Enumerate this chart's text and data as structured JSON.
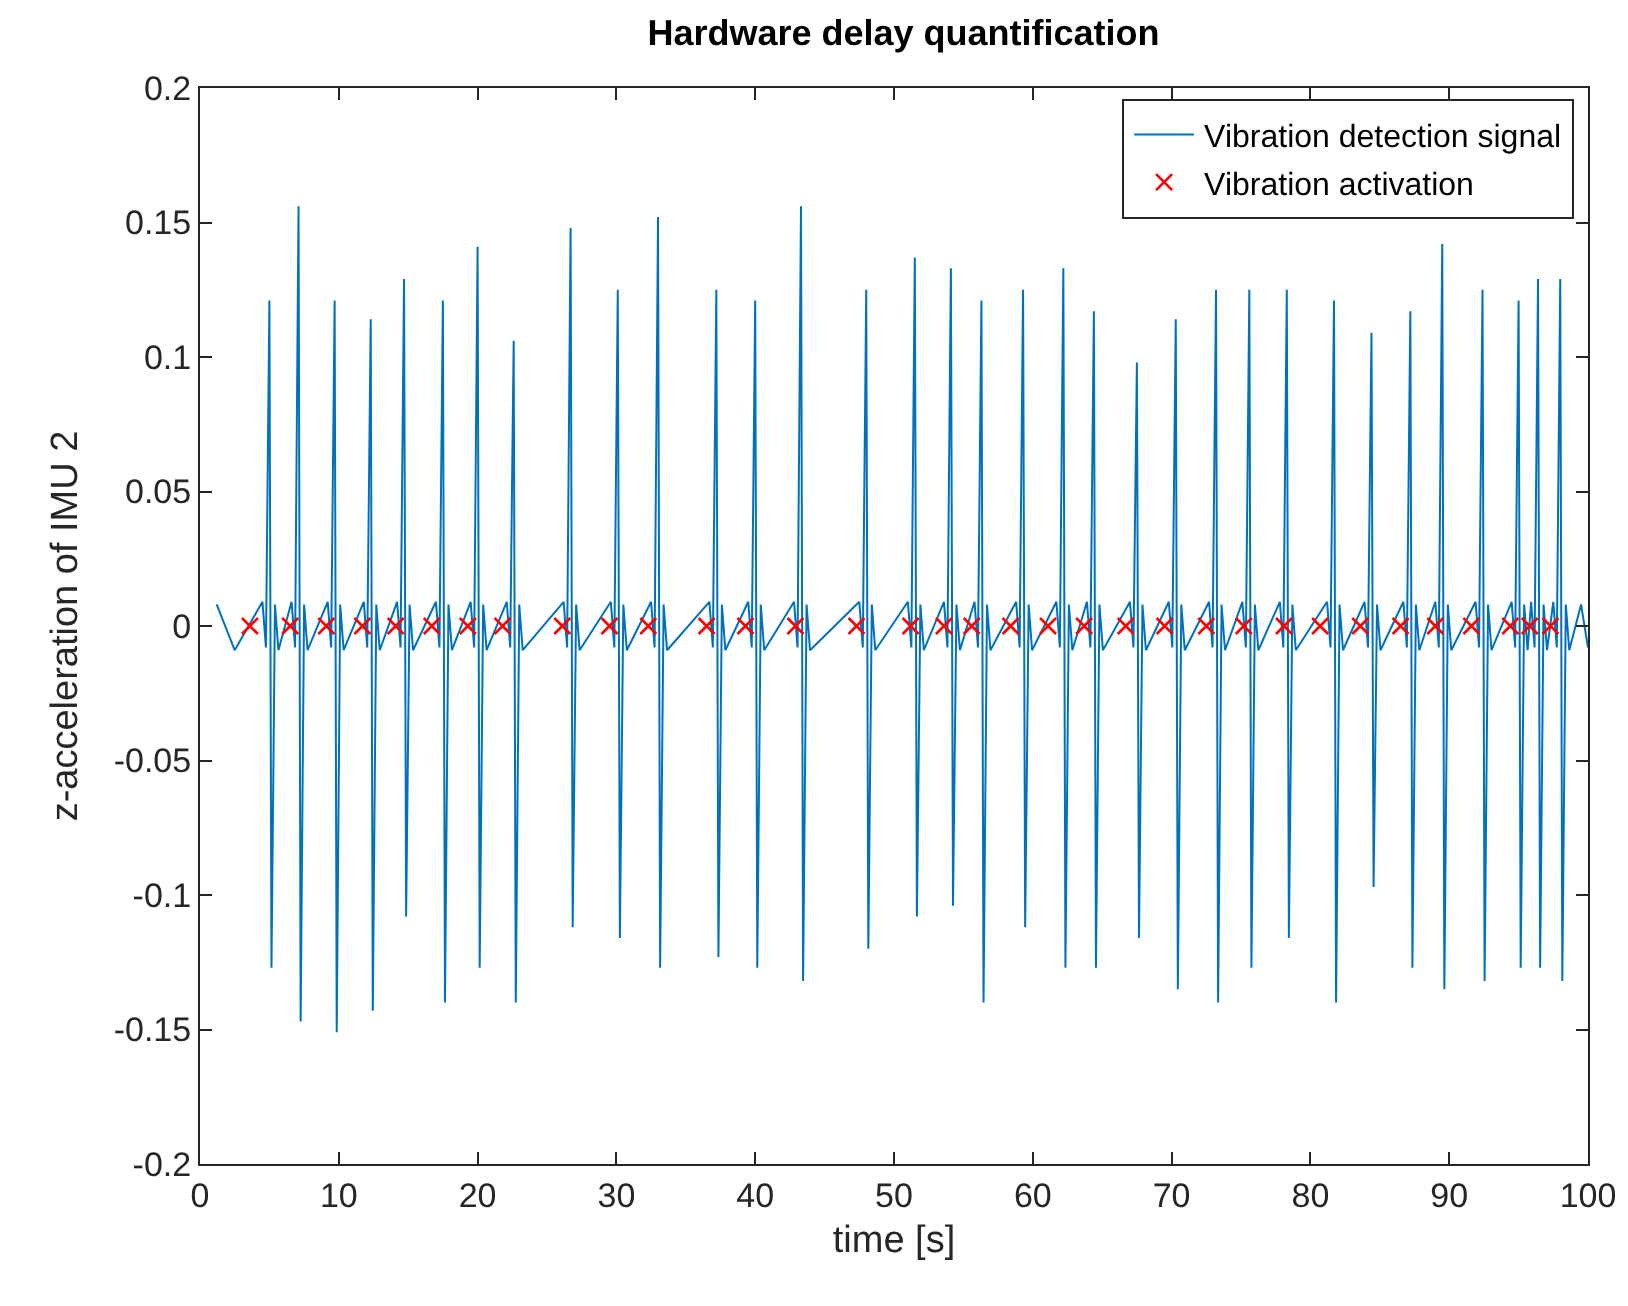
{
  "chart_data": {
    "type": "line",
    "title": "Hardware delay quantification",
    "xlabel": "time [s]",
    "ylabel": "z-acceleration of IMU 2",
    "xlim": [
      0,
      100
    ],
    "xticks": [
      0,
      10,
      20,
      30,
      40,
      50,
      60,
      70,
      80,
      90,
      100
    ],
    "ylim": [
      -0.2,
      0.2
    ],
    "yticks": [
      -0.2,
      -0.15,
      -0.1,
      -0.05,
      0,
      0.05,
      0.1,
      0.15,
      0.2
    ],
    "legend": "top right",
    "series": [
      {
        "name": "Vibration detection signal",
        "color": "#0072bd",
        "marker": "none",
        "x": [
          1.2,
          2.5,
          4.5,
          4.75,
          5,
          5.15,
          5.4,
          5.65,
          6.6,
          6.85,
          7.1,
          7.25,
          7.5,
          7.75,
          9.2,
          9.45,
          9.7,
          9.85,
          10.1,
          10.35,
          11.8,
          12.05,
          12.3,
          12.45,
          12.7,
          12.95,
          14.2,
          14.45,
          14.7,
          14.85,
          15.1,
          15.35,
          17,
          17.25,
          17.5,
          17.65,
          17.9,
          18.15,
          19.5,
          19.75,
          20,
          20.15,
          20.4,
          20.65,
          22.1,
          22.35,
          22.6,
          22.75,
          23,
          23.25,
          26.2,
          26.45,
          26.7,
          26.85,
          27.1,
          27.35,
          29.6,
          29.85,
          30.1,
          30.25,
          30.5,
          30.75,
          32.5,
          32.75,
          33,
          33.15,
          33.4,
          33.65,
          36.7,
          36.95,
          37.2,
          37.35,
          37.6,
          37.85,
          39.5,
          39.75,
          40,
          40.15,
          40.4,
          40.65,
          42.8,
          43.05,
          43.3,
          43.45,
          43.7,
          43.95,
          47.5,
          47.75,
          48,
          48.15,
          48.4,
          48.65,
          51,
          51.25,
          51.5,
          51.65,
          51.9,
          52.15,
          53.6,
          53.85,
          54.1,
          54.25,
          54.5,
          54.75,
          55.8,
          56.05,
          56.3,
          56.45,
          56.7,
          56.95,
          58.8,
          59.05,
          59.3,
          59.45,
          59.7,
          59.95,
          61.7,
          61.95,
          62.2,
          62.35,
          62.6,
          62.85,
          63.9,
          64.15,
          64.4,
          64.55,
          64.8,
          65.05,
          67,
          67.25,
          67.5,
          67.65,
          67.9,
          68.15,
          69.8,
          70.05,
          70.3,
          70.45,
          70.7,
          70.95,
          72.7,
          72.95,
          73.2,
          73.35,
          73.6,
          73.85,
          75.1,
          75.35,
          75.6,
          75.75,
          76,
          76.25,
          77.8,
          78.05,
          78.3,
          78.45,
          78.7,
          78.95,
          81.2,
          81.45,
          81.7,
          81.85,
          82.1,
          82.35,
          83.9,
          84.15,
          84.4,
          84.55,
          84.8,
          85.05,
          86.7,
          86.95,
          87.2,
          87.35,
          87.6,
          87.85,
          89,
          89.25,
          89.5,
          89.65,
          89.9,
          90.15,
          91.9,
          92.15,
          92.4,
          92.55,
          92.8,
          93.05,
          94.5,
          94.75,
          95,
          95.15,
          95.4,
          95.65,
          95.9,
          96.15,
          96.4,
          96.55,
          96.8,
          97.05,
          97.5,
          97.75,
          98,
          98.15,
          98.4,
          98.65,
          99.5,
          100
        ],
        "values": [
          0.008,
          -0.009,
          0.009,
          -0.008,
          0.121,
          -0.127,
          0.008,
          -0.009,
          0.009,
          -0.008,
          0.156,
          -0.147,
          0.008,
          -0.009,
          0.009,
          -0.008,
          0.121,
          -0.151,
          0.008,
          -0.009,
          0.009,
          -0.008,
          0.114,
          -0.143,
          0.008,
          -0.009,
          0.009,
          -0.008,
          0.129,
          -0.108,
          0.008,
          -0.009,
          0.009,
          -0.008,
          0.121,
          -0.14,
          0.008,
          -0.009,
          0.009,
          -0.008,
          0.141,
          -0.127,
          0.008,
          -0.009,
          0.009,
          -0.008,
          0.106,
          -0.14,
          0.008,
          -0.009,
          0.009,
          -0.008,
          0.148,
          -0.112,
          0.008,
          -0.009,
          0.009,
          -0.008,
          0.125,
          -0.116,
          0.008,
          -0.009,
          0.009,
          -0.008,
          0.152,
          -0.127,
          0.008,
          -0.009,
          0.009,
          -0.008,
          0.125,
          -0.123,
          0.008,
          -0.009,
          0.009,
          -0.008,
          0.121,
          -0.127,
          0.008,
          -0.009,
          0.009,
          -0.008,
          0.156,
          -0.132,
          0.008,
          -0.009,
          0.009,
          -0.008,
          0.125,
          -0.12,
          0.008,
          -0.009,
          0.009,
          -0.008,
          0.137,
          -0.108,
          0.008,
          -0.009,
          0.009,
          -0.008,
          0.133,
          -0.104,
          0.008,
          -0.009,
          0.009,
          -0.008,
          0.121,
          -0.14,
          0.008,
          -0.009,
          0.009,
          -0.008,
          0.125,
          -0.112,
          0.008,
          -0.009,
          0.009,
          -0.008,
          0.133,
          -0.127,
          0.008,
          -0.009,
          0.009,
          -0.008,
          0.117,
          -0.127,
          0.008,
          -0.009,
          0.009,
          -0.008,
          0.098,
          -0.116,
          0.008,
          -0.009,
          0.009,
          -0.008,
          0.114,
          -0.135,
          0.008,
          -0.009,
          0.009,
          -0.008,
          0.125,
          -0.14,
          0.008,
          -0.009,
          0.009,
          -0.008,
          0.125,
          -0.127,
          0.008,
          -0.009,
          0.009,
          -0.008,
          0.125,
          -0.116,
          0.008,
          -0.009,
          0.009,
          -0.008,
          0.121,
          -0.14,
          0.008,
          -0.009,
          0.009,
          -0.008,
          0.109,
          -0.097,
          0.008,
          -0.009,
          0.009,
          -0.008,
          0.117,
          -0.127,
          0.008,
          -0.009,
          0.009,
          -0.008,
          0.142,
          -0.135,
          0.008,
          -0.009,
          0.009,
          -0.008,
          0.125,
          -0.132,
          0.008,
          -0.009,
          0.009,
          -0.008,
          0.121,
          -0.127,
          0.008,
          -0.009,
          0.009,
          -0.008,
          0.129,
          -0.127,
          0.008,
          -0.009,
          0.009,
          -0.008,
          0.129,
          -0.132,
          0.008,
          -0.009,
          0.008,
          -0.008
        ]
      },
      {
        "name": "Vibration activation",
        "type": "scatter",
        "color": "#ff0000",
        "marker": "cross",
        "x": [
          3.6,
          6.5,
          9.1,
          11.7,
          14.1,
          16.7,
          19.3,
          21.8,
          26.1,
          29.5,
          32.3,
          36.5,
          39.3,
          42.9,
          47.3,
          51.2,
          53.6,
          55.6,
          58.4,
          61.1,
          63.7,
          66.7,
          69.5,
          72.5,
          75.2,
          78.1,
          80.7,
          83.6,
          86.5,
          89.0,
          91.6,
          94.4,
          95.8,
          97.3
        ],
        "values": [
          0,
          0,
          0,
          0,
          0,
          0,
          0,
          0,
          0,
          0,
          0,
          0,
          0,
          0,
          0,
          0,
          0,
          0,
          0,
          0,
          0,
          0,
          0,
          0,
          0,
          0,
          0,
          0,
          0,
          0,
          0,
          0,
          0,
          0
        ]
      }
    ]
  }
}
